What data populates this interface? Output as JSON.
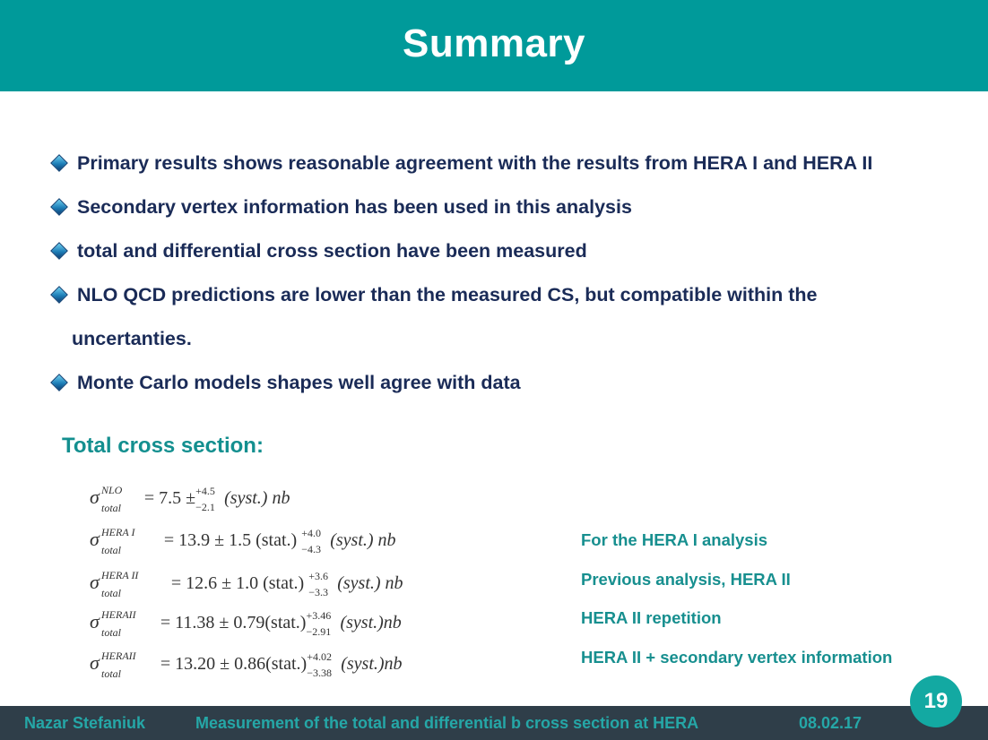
{
  "slide": {
    "title": "Summary",
    "bullets": [
      "Primary results shows reasonable agreement with the  results from HERA I and  HERA II",
      "Secondary vertex information has been used in this analysis",
      "total and differential cross section have been measured",
      "NLO QCD predictions are lower than the measured CS, but compatible within the",
      "uncertanties.",
      "Monte Carlo models shapes well agree with data"
    ],
    "section_title": "Total cross section:",
    "formulas": [
      {
        "sup": "NLO",
        "sub": "total",
        "main": "= 7.5 ±",
        "err_up": "+4.5",
        "err_down": "−2.1",
        "tail": "(syst.) nb"
      },
      {
        "sup": "HERA  I",
        "sub": "total",
        "main": "= 13.9 ± 1.5 (stat.)",
        "err_up": "+4.0",
        "err_down": "−4.3",
        "tail": "(syst.) nb"
      },
      {
        "sup": "HERA  II",
        "sub": "total",
        "main": "= 12.6 ± 1.0 (stat.)",
        "err_up": "+3.6",
        "err_down": "−3.3",
        "tail": "(syst.) nb"
      },
      {
        "sup": "HERAII",
        "sub": "total",
        "main": "= 11.38 ± 0.79(stat.)",
        "err_up": "+3.46",
        "err_down": "−2.91",
        "tail": "(syst.)nb"
      },
      {
        "sup": "HERAII",
        "sub": "total",
        "main": "= 13.20 ± 0.86(stat.)",
        "err_up": "+4.02",
        "err_down": "−3.38",
        "tail": "(syst.)nb"
      }
    ],
    "notes": [
      "For the HERA I analysis",
      "Previous analysis, HERA II",
      "HERA II repetition",
      "HERA II + secondary vertex information"
    ]
  },
  "footer": {
    "author": "Nazar  Stefaniuk",
    "talk_title": "Measurement of the total and differential b cross section at HERA",
    "date": "08.02.17",
    "page_number": "19"
  },
  "colors": {
    "header_bg": "#009a9a",
    "bullet_text": "#1a2b57",
    "accent_teal": "#178f8f",
    "footer_bg": "#2f3e49",
    "page_badge": "#13a9a2"
  }
}
